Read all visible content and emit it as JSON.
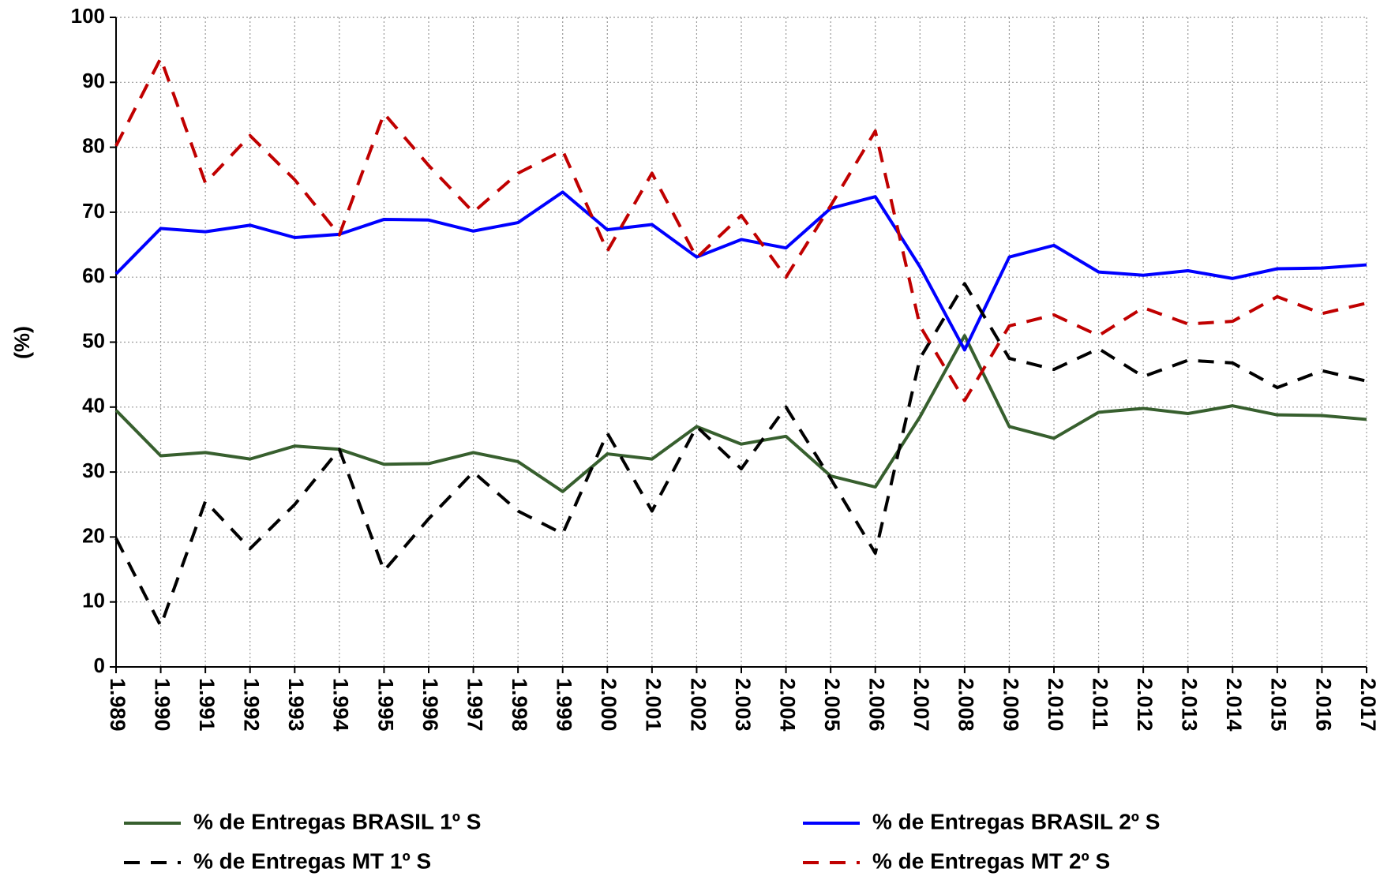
{
  "chart_data": {
    "type": "line",
    "y_label": "(%)",
    "categories": [
      "1.989",
      "1.990",
      "1.991",
      "1.992",
      "1.993",
      "1.994",
      "1.995",
      "1.996",
      "1.997",
      "1.998",
      "1.999",
      "2.000",
      "2.001",
      "2.002",
      "2.003",
      "2.004",
      "2.005",
      "2.006",
      "2.007",
      "2.008",
      "2.009",
      "2.010",
      "2.011",
      "2.012",
      "2.013",
      "2.014",
      "2.015",
      "2.016",
      "2.017"
    ],
    "ylim": [
      0,
      100
    ],
    "yticks": [
      0,
      10,
      20,
      30,
      40,
      50,
      60,
      70,
      80,
      90,
      100
    ],
    "grid": true,
    "series": [
      {
        "name": "% de Entregas BRASIL 1º S",
        "color": "#375f2e",
        "dash": false,
        "values": [
          39.5,
          32.5,
          33,
          32,
          34,
          33.5,
          31.2,
          31.3,
          33,
          31.6,
          27,
          32.8,
          32,
          37,
          34.3,
          35.5,
          29.4,
          27.7,
          38.5,
          51,
          37,
          35.2,
          39.2,
          39.8,
          39,
          40.2,
          38.8,
          38.7,
          38.1
        ]
      },
      {
        "name": "% de Entregas BRASIL 2º S",
        "color": "#0000ff",
        "dash": false,
        "values": [
          60.5,
          67.5,
          67,
          68,
          66.1,
          66.6,
          68.9,
          68.8,
          67.1,
          68.4,
          73.1,
          67.3,
          68.1,
          63.1,
          65.8,
          64.5,
          70.6,
          72.4,
          61.6,
          48.8,
          63.1,
          64.9,
          60.8,
          60.3,
          61,
          59.8,
          61.3,
          61.4,
          61.9
        ]
      },
      {
        "name": "% de Entregas MT 1º S",
        "color": "#000000",
        "dash": true,
        "values": [
          19.8,
          6.3,
          25.5,
          18.2,
          25,
          33.5,
          14.8,
          22.8,
          30,
          24,
          20.5,
          36,
          24,
          37,
          30.5,
          40,
          29,
          17.5,
          47.5,
          59,
          47.5,
          45.8,
          49,
          44.7,
          47.2,
          46.8,
          43,
          45.6,
          44
        ]
      },
      {
        "name": "% de Entregas MT 2º S",
        "color": "#c00000",
        "dash": true,
        "values": [
          80.2,
          93.7,
          74.5,
          81.8,
          75,
          66.5,
          85.2,
          77.2,
          70,
          76,
          79.5,
          64,
          76,
          63,
          69.5,
          60,
          71,
          82.5,
          52.5,
          41,
          52.5,
          54.2,
          51,
          55.3,
          52.8,
          53.2,
          57,
          54.4,
          56
        ]
      }
    ]
  }
}
